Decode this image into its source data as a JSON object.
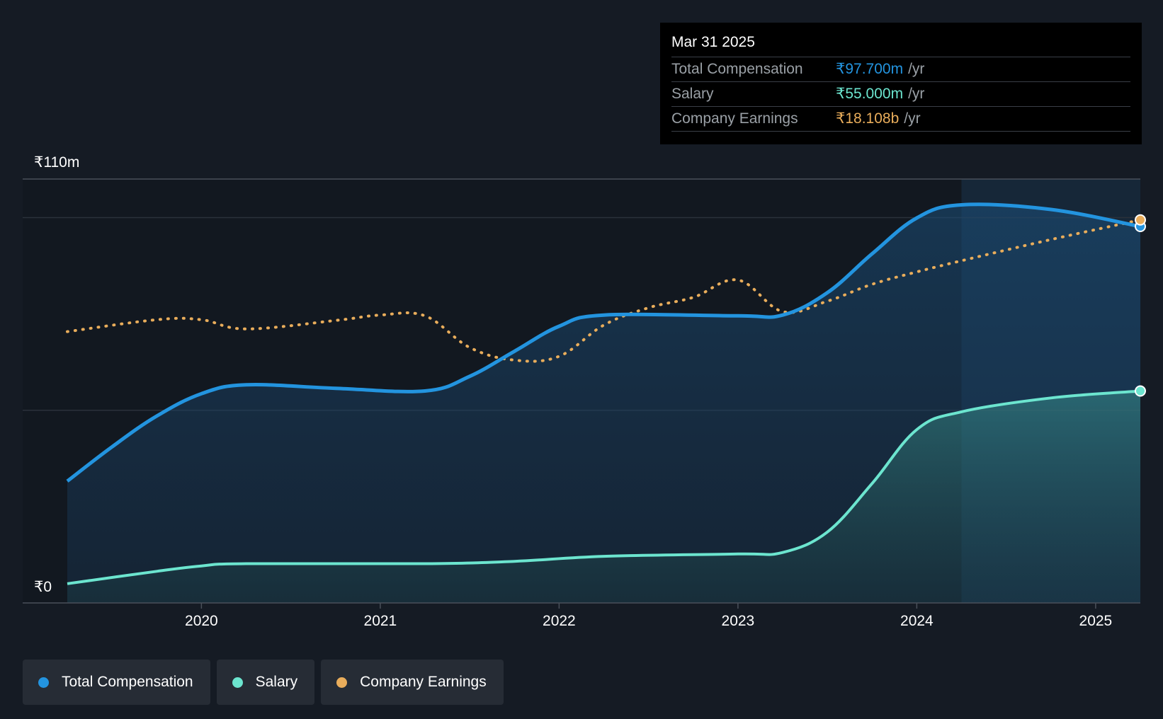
{
  "colors": {
    "total_compensation": "#2394df",
    "salary": "#6ce5cf",
    "company_earnings": "#e9ad5b",
    "background": "#151b24"
  },
  "tooltip": {
    "date": "Mar 31 2025",
    "rows": [
      {
        "label": "Total Compensation",
        "value": "₹97.700m",
        "unit": "/yr",
        "color": "#2394df"
      },
      {
        "label": "Salary",
        "value": "₹55.000m",
        "unit": "/yr",
        "color": "#6ce5cf"
      },
      {
        "label": "Company Earnings",
        "value": "₹18.108b",
        "unit": "/yr",
        "color": "#e9ad5b"
      }
    ]
  },
  "legend": [
    {
      "label": "Total Compensation",
      "color": "#2394df"
    },
    {
      "label": "Salary",
      "color": "#6ce5cf"
    },
    {
      "label": "Company Earnings",
      "color": "#e9ad5b"
    }
  ],
  "chart_data": {
    "type": "area",
    "y_axis_labels": {
      "top": "₹110m",
      "bottom": "₹0"
    },
    "ylim": [
      0,
      110
    ],
    "xlim": [
      2019.25,
      2025.25
    ],
    "x_ticks": [
      {
        "value": 2020,
        "label": "2020"
      },
      {
        "value": 2021,
        "label": "2021"
      },
      {
        "value": 2022,
        "label": "2022"
      },
      {
        "value": 2023,
        "label": "2023"
      },
      {
        "value": 2024,
        "label": "2024"
      },
      {
        "value": 2025,
        "label": "2025"
      }
    ],
    "gridlines": [
      100,
      50
    ],
    "highlight_from": 2024.25,
    "series": [
      {
        "key": "total_compensation",
        "name": "Total Compensation",
        "style": "line-area",
        "points": [
          [
            2019.25,
            31.6
          ],
          [
            2019.5,
            40.5
          ],
          [
            2019.75,
            48.5
          ],
          [
            2020.0,
            54.3
          ],
          [
            2020.25,
            56.6
          ],
          [
            2020.75,
            55.7
          ],
          [
            2021.25,
            55.0
          ],
          [
            2021.5,
            58.8
          ],
          [
            2021.75,
            65.3
          ],
          [
            2022.0,
            71.8
          ],
          [
            2022.25,
            74.7
          ],
          [
            2023.0,
            74.5
          ],
          [
            2023.25,
            74.7
          ],
          [
            2023.5,
            80.5
          ],
          [
            2023.75,
            90.6
          ],
          [
            2024.0,
            99.9
          ],
          [
            2024.25,
            103.3
          ],
          [
            2024.75,
            102.1
          ],
          [
            2025.25,
            97.7
          ]
        ]
      },
      {
        "key": "salary",
        "name": "Salary",
        "style": "line-area",
        "points": [
          [
            2019.25,
            5.0
          ],
          [
            2019.75,
            8.2
          ],
          [
            2020.0,
            9.6
          ],
          [
            2020.25,
            10.2
          ],
          [
            2021.25,
            10.2
          ],
          [
            2021.75,
            10.8
          ],
          [
            2022.25,
            12.1
          ],
          [
            2023.0,
            12.7
          ],
          [
            2023.25,
            13.1
          ],
          [
            2023.5,
            18.4
          ],
          [
            2023.75,
            31.0
          ],
          [
            2024.0,
            45.0
          ],
          [
            2024.25,
            49.6
          ],
          [
            2024.75,
            53.2
          ],
          [
            2025.25,
            55.0
          ]
        ]
      },
      {
        "key": "company_earnings",
        "name": "Company Earnings",
        "style": "dotted",
        "points": [
          [
            2019.25,
            70.4
          ],
          [
            2019.75,
            73.5
          ],
          [
            2020.0,
            73.5
          ],
          [
            2020.25,
            71.1
          ],
          [
            2020.75,
            73.3
          ],
          [
            2021.0,
            74.7
          ],
          [
            2021.25,
            74.5
          ],
          [
            2021.5,
            66.3
          ],
          [
            2021.75,
            63.0
          ],
          [
            2022.0,
            64.0
          ],
          [
            2022.25,
            72.1
          ],
          [
            2022.5,
            76.6
          ],
          [
            2022.75,
            79.3
          ],
          [
            2023.0,
            83.8
          ],
          [
            2023.25,
            75.6
          ],
          [
            2023.5,
            78.3
          ],
          [
            2023.75,
            82.7
          ],
          [
            2024.0,
            85.9
          ],
          [
            2024.25,
            88.8
          ],
          [
            2024.75,
            94.3
          ],
          [
            2025.25,
            99.4
          ]
        ]
      }
    ]
  }
}
